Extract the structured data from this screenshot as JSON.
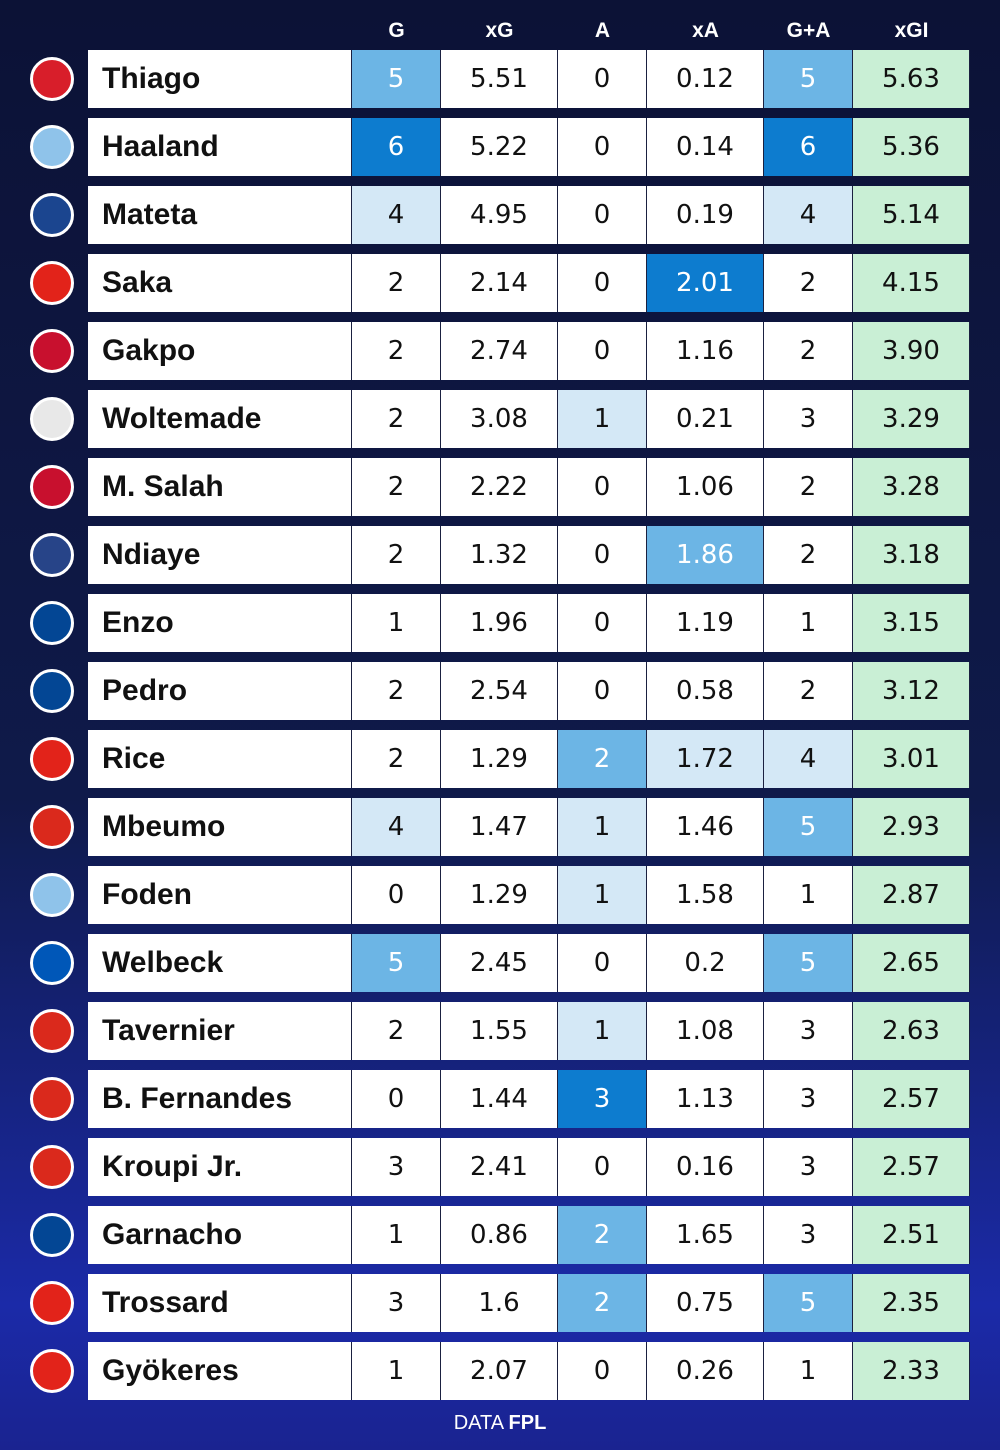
{
  "header": {
    "columns": [
      {
        "label": "G",
        "heat": true
      },
      {
        "label": "xG",
        "heat": false
      },
      {
        "label": "A",
        "heat": true
      },
      {
        "label": "xA",
        "heat": true
      },
      {
        "label": "G+A",
        "heat": true
      },
      {
        "label": "xGI",
        "heat": false,
        "fill": "#c9efd5"
      }
    ]
  },
  "heat_colors": [
    "#0d7ccf",
    "#6cb5e5",
    "#d4e8f6"
  ],
  "rows": [
    {
      "name": "Thiago",
      "badge": "#d81e2a",
      "values": [
        "5",
        "5.51",
        "0",
        "0.12",
        "5",
        "5.63"
      ]
    },
    {
      "name": "Haaland",
      "badge": "#8fc3ea",
      "values": [
        "6",
        "5.22",
        "0",
        "0.14",
        "6",
        "5.36"
      ]
    },
    {
      "name": "Mateta",
      "badge": "#1b458f",
      "values": [
        "4",
        "4.95",
        "0",
        "0.19",
        "4",
        "5.14"
      ]
    },
    {
      "name": "Saka",
      "badge": "#e2231a",
      "values": [
        "2",
        "2.14",
        "0",
        "2.01",
        "2",
        "4.15"
      ]
    },
    {
      "name": "Gakpo",
      "badge": "#c8102e",
      "values": [
        "2",
        "2.74",
        "0",
        "1.16",
        "2",
        "3.90"
      ]
    },
    {
      "name": "Woltemade",
      "badge": "#e8e8e8",
      "values": [
        "2",
        "3.08",
        "1",
        "0.21",
        "3",
        "3.29"
      ]
    },
    {
      "name": "M. Salah",
      "badge": "#c8102e",
      "values": [
        "2",
        "2.22",
        "0",
        "1.06",
        "2",
        "3.28"
      ]
    },
    {
      "name": "Ndiaye",
      "badge": "#274488",
      "values": [
        "2",
        "1.32",
        "0",
        "1.86",
        "2",
        "3.18"
      ]
    },
    {
      "name": "Enzo",
      "badge": "#034694",
      "values": [
        "1",
        "1.96",
        "0",
        "1.19",
        "1",
        "3.15"
      ]
    },
    {
      "name": "Pedro",
      "badge": "#034694",
      "values": [
        "2",
        "2.54",
        "0",
        "0.58",
        "2",
        "3.12"
      ]
    },
    {
      "name": "Rice",
      "badge": "#e2231a",
      "values": [
        "2",
        "1.29",
        "2",
        "1.72",
        "4",
        "3.01"
      ]
    },
    {
      "name": "Mbeumo",
      "badge": "#da291c",
      "values": [
        "4",
        "1.47",
        "1",
        "1.46",
        "5",
        "2.93"
      ]
    },
    {
      "name": "Foden",
      "badge": "#8fc3ea",
      "values": [
        "0",
        "1.29",
        "1",
        "1.58",
        "1",
        "2.87"
      ]
    },
    {
      "name": "Welbeck",
      "badge": "#0057b8",
      "values": [
        "5",
        "2.45",
        "0",
        "0.2",
        "5",
        "2.65"
      ]
    },
    {
      "name": "Tavernier",
      "badge": "#da291c",
      "values": [
        "2",
        "1.55",
        "1",
        "1.08",
        "3",
        "2.63"
      ]
    },
    {
      "name": "B. Fernandes",
      "badge": "#da291c",
      "values": [
        "0",
        "1.44",
        "3",
        "1.13",
        "3",
        "2.57"
      ]
    },
    {
      "name": "Kroupi Jr.",
      "badge": "#da291c",
      "values": [
        "3",
        "2.41",
        "0",
        "0.16",
        "3",
        "2.57"
      ]
    },
    {
      "name": "Garnacho",
      "badge": "#034694",
      "values": [
        "1",
        "0.86",
        "2",
        "1.65",
        "3",
        "2.51"
      ]
    },
    {
      "name": "Trossard",
      "badge": "#e2231a",
      "values": [
        "3",
        "1.6",
        "2",
        "0.75",
        "5",
        "2.35"
      ]
    },
    {
      "name": "Gyökeres",
      "badge": "#e2231a",
      "values": [
        "1",
        "2.07",
        "0",
        "0.26",
        "1",
        "2.33"
      ]
    }
  ],
  "footer": {
    "prefix": "DATA",
    "source": "FPL"
  }
}
